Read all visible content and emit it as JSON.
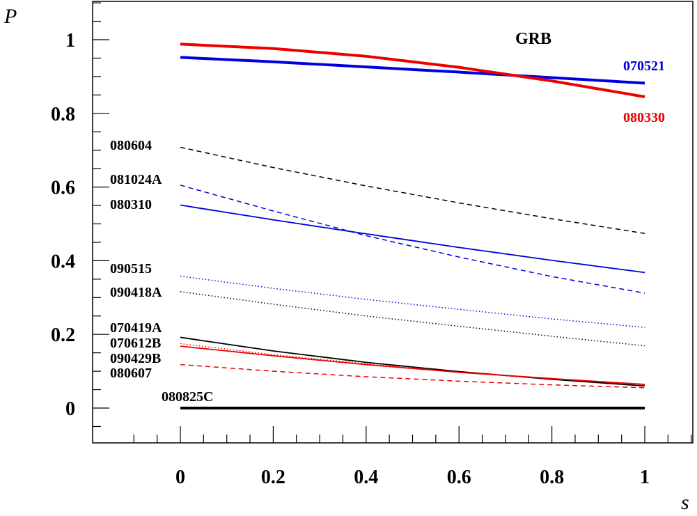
{
  "chart_data": {
    "type": "line",
    "title": "GRB",
    "xlabel": "s",
    "ylabel": "P",
    "xlim": [
      -0.19,
      1.1
    ],
    "ylim": [
      -0.1,
      1.1
    ],
    "x_ticks": [
      0,
      0.2,
      0.4,
      0.6,
      0.8,
      1
    ],
    "x_tick_labels": [
      "0",
      "0.2",
      "0.4",
      "0.6",
      "0.8",
      "1"
    ],
    "y_ticks": [
      0,
      0.2,
      0.4,
      0.6,
      0.8,
      1
    ],
    "y_tick_labels": [
      "0",
      "0.2",
      "0.4",
      "0.6",
      "0.8",
      "1"
    ],
    "grid": false,
    "x": [
      0,
      0.2,
      0.4,
      0.6,
      0.8,
      1.0
    ],
    "series": [
      {
        "name": "070521",
        "color": "#0000dd",
        "dash": "solid",
        "width": 4,
        "values": [
          0.952,
          0.94,
          0.926,
          0.912,
          0.897,
          0.882
        ],
        "label_pos": "right-above"
      },
      {
        "name": "080330",
        "color": "#ee0000",
        "dash": "solid",
        "width": 4,
        "values": [
          0.988,
          0.976,
          0.955,
          0.925,
          0.888,
          0.845
        ],
        "label_pos": "right-below"
      },
      {
        "name": "080604",
        "color": "#000000",
        "dash": "dashed",
        "width": 1.5,
        "values": [
          0.708,
          0.653,
          0.603,
          0.557,
          0.514,
          0.474
        ],
        "label_pos": "left"
      },
      {
        "name": "081024A",
        "color": "#0000dd",
        "dash": "dashed",
        "width": 1.5,
        "values": [
          0.605,
          0.535,
          0.468,
          0.41,
          0.357,
          0.312
        ],
        "label_pos": "left"
      },
      {
        "name": "080310",
        "color": "#0000dd",
        "dash": "solid",
        "width": 1.8,
        "values": [
          0.551,
          0.511,
          0.473,
          0.436,
          0.401,
          0.368
        ],
        "label_pos": "left"
      },
      {
        "name": "090515",
        "color": "#0000dd",
        "dash": "dotted",
        "width": 1.5,
        "values": [
          0.358,
          0.325,
          0.295,
          0.268,
          0.242,
          0.219
        ],
        "label_pos": "left"
      },
      {
        "name": "090418A",
        "color": "#000000",
        "dash": "dotted",
        "width": 1.5,
        "values": [
          0.316,
          0.282,
          0.25,
          0.222,
          0.195,
          0.169
        ],
        "label_pos": "left"
      },
      {
        "name": "070419A",
        "color": "#000000",
        "dash": "solid",
        "width": 1.8,
        "values": [
          0.192,
          0.155,
          0.124,
          0.099,
          0.078,
          0.06
        ],
        "label_pos": "left"
      },
      {
        "name": "070612B",
        "color": "#ee0000",
        "dash": "dotted",
        "width": 1.5,
        "values": [
          0.175,
          0.145,
          0.12,
          0.098,
          0.08,
          0.065
        ],
        "label_pos": "left"
      },
      {
        "name": "090429B",
        "color": "#ee0000",
        "dash": "solid",
        "width": 1.8,
        "values": [
          0.168,
          0.142,
          0.118,
          0.097,
          0.08,
          0.064
        ],
        "label_pos": "left"
      },
      {
        "name": "080607",
        "color": "#ee0000",
        "dash": "dashed",
        "width": 1.5,
        "values": [
          0.118,
          0.1,
          0.085,
          0.073,
          0.063,
          0.055
        ],
        "label_pos": "left"
      },
      {
        "name": "080825C",
        "color": "#000000",
        "dash": "solid",
        "width": 4,
        "values": [
          0.0,
          0.0,
          0.0,
          0.0,
          0.0,
          0.0
        ],
        "label_pos": "above-left"
      }
    ]
  }
}
